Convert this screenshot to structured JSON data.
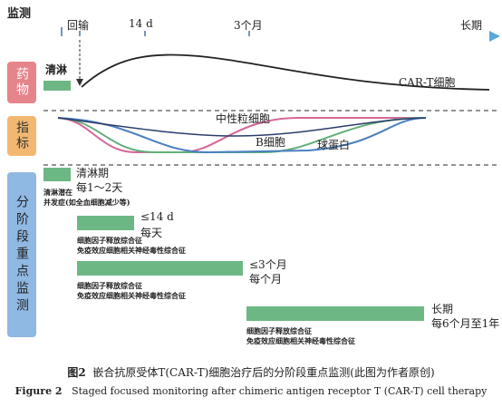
{
  "header": {
    "title": "监测"
  },
  "timeline": {
    "labels": [
      "回输",
      "14 d",
      "3个月",
      "长期"
    ]
  },
  "sections": {
    "drug": {
      "label": "药物",
      "lymphodepletion": "清淋",
      "curve_label": "CAR-T细胞"
    },
    "indicators": {
      "label": "指标",
      "curves": [
        "中性粒细胞",
        "B细胞",
        "球蛋白"
      ]
    },
    "monitoring": {
      "label": "分阶段重点监测",
      "stages": [
        {
          "period": "清淋期",
          "frequency": "每1～2天",
          "notes": [
            "清淋潜在",
            "并发症(如全血细胞减少等)"
          ]
        },
        {
          "period": "≤14 d",
          "frequency": "每天",
          "notes": [
            "细胞因子释放综合征",
            "免疫效应细胞相关神经毒性综合征"
          ]
        },
        {
          "period": "≤3个月",
          "frequency": "每个月",
          "notes": [
            "细胞因子释放综合征",
            "免疫效应细胞相关神经毒性综合征"
          ]
        },
        {
          "period": "长期",
          "frequency": "每6个月至1年",
          "notes": [
            "细胞因子释放综合征",
            "免疫效应细胞相关神经毒性综合征"
          ]
        }
      ]
    }
  },
  "caption": {
    "zh_label": "图2",
    "zh_text": "嵌合抗原受体T(CAR-T)细胞治疗后的分阶段重点监测(此图为作者原创)",
    "en_label": "Figure 2",
    "en_text": "Staged focused monitoring after chimeric antigen receptor T (CAR-T) cell therapy"
  }
}
